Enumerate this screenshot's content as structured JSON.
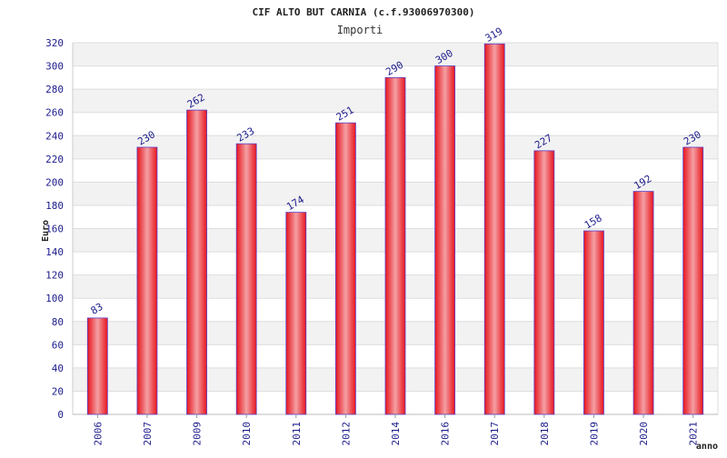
{
  "chart_data": {
    "type": "bar",
    "title": "CIF ALTO BUT CARNIA (c.f.93006970300)",
    "subtitle": "Importi",
    "xlabel": "anno",
    "ylabel": "Euro",
    "categories": [
      "2006",
      "2007",
      "2009",
      "2010",
      "2011",
      "2012",
      "2014",
      "2016",
      "2017",
      "2018",
      "2019",
      "2020",
      "2021"
    ],
    "series": [
      {
        "values": [
          83,
          230,
          262,
          233,
          174,
          251,
          290,
          300,
          319,
          227,
          158,
          192,
          230
        ]
      }
    ],
    "ylim": [
      0,
      320
    ],
    "ytick_step": 20,
    "yticks": [
      "0",
      "20",
      "40",
      "60",
      "80",
      "100",
      "120",
      "140",
      "160",
      "180",
      "200",
      "220",
      "240",
      "260",
      "280",
      "300",
      "320"
    ],
    "data_labels": [
      "83",
      "230",
      "262",
      "233",
      "174",
      "251",
      "290",
      "300",
      "319",
      "227",
      "158",
      "192",
      "230"
    ],
    "grid": true,
    "bar_color": "#e8141c",
    "bar_highlight": "#f4a0a4",
    "bar_border": "#5b3fc8",
    "label_color": "#1c1c8c",
    "band_color": "#f2f2f2"
  }
}
